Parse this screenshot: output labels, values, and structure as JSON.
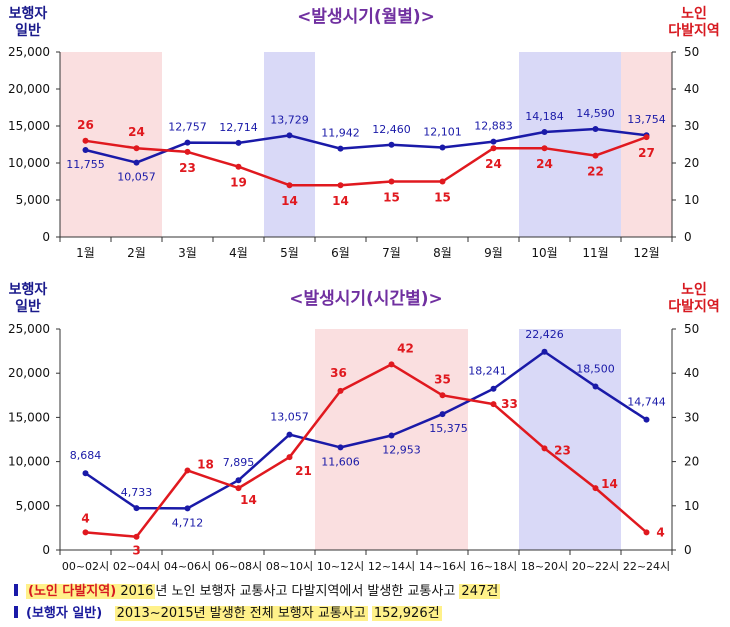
{
  "chart_data": [
    {
      "type": "line",
      "title": "<발생시기(월별)>",
      "left_axis_title": [
        "보행자",
        "일반"
      ],
      "right_axis_title": [
        "노인",
        "다발지역"
      ],
      "categories": [
        "1월",
        "2월",
        "3월",
        "4월",
        "5월",
        "6월",
        "7월",
        "8월",
        "9월",
        "10월",
        "11월",
        "12월"
      ],
      "left_ylim": [
        0,
        25000
      ],
      "left_ticks": [
        "0",
        "5,000",
        "10,000",
        "15,000",
        "20,000",
        "25,000"
      ],
      "right_ylim": [
        0,
        50
      ],
      "right_ticks": [
        "0",
        "10",
        "20",
        "30",
        "40",
        "50"
      ],
      "highlights": [
        {
          "from": 0,
          "to": 1,
          "color": "#fadfe0"
        },
        {
          "from": 4,
          "to": 4,
          "color": "#d9d9f7"
        },
        {
          "from": 9,
          "to": 10,
          "color": "#d9d9f7"
        },
        {
          "from": 11,
          "to": 11,
          "color": "#fadfe0"
        }
      ],
      "series": [
        {
          "axis": "left",
          "color": "#1a1aa8",
          "values": [
            11755,
            10057,
            12757,
            12714,
            13729,
            11942,
            12460,
            12101,
            12883,
            14184,
            14590,
            13754
          ],
          "labels": [
            "11,755",
            "10,057",
            "12,757",
            "12,714",
            "13,729",
            "11,942",
            "12,460",
            "12,101",
            "12,883",
            "14,184",
            "14,590",
            "13,754"
          ]
        },
        {
          "axis": "right",
          "color": "#e0191f",
          "values": [
            26,
            24,
            23,
            19,
            14,
            14,
            15,
            15,
            24,
            24,
            22,
            27
          ],
          "labels": [
            "26",
            "24",
            "23",
            "19",
            "14",
            "14",
            "15",
            "15",
            "24",
            "24",
            "22",
            "27"
          ]
        }
      ]
    },
    {
      "type": "line",
      "title": "<발생시기(시간별)>",
      "left_axis_title": [
        "보행자",
        "일반"
      ],
      "right_axis_title": [
        "노인",
        "다발지역"
      ],
      "categories": [
        "00~02시",
        "02~04시",
        "04~06시",
        "06~08시",
        "08~10시",
        "10~12시",
        "12~14시",
        "14~16시",
        "16~18시",
        "18~20시",
        "20~22시",
        "22~24시"
      ],
      "left_ylim": [
        0,
        25000
      ],
      "left_ticks": [
        "0",
        "5,000",
        "10,000",
        "15,000",
        "20,000",
        "25,000"
      ],
      "right_ylim": [
        0,
        50
      ],
      "right_ticks": [
        "0",
        "10",
        "20",
        "30",
        "40",
        "50"
      ],
      "highlights": [
        {
          "from": 5,
          "to": 7,
          "color": "#fadfe0"
        },
        {
          "from": 9,
          "to": 10,
          "color": "#d9d9f7"
        }
      ],
      "series": [
        {
          "axis": "left",
          "color": "#1a1aa8",
          "values": [
            8684,
            4733,
            4712,
            7895,
            13057,
            11606,
            12953,
            15375,
            18241,
            22426,
            18500,
            14744
          ],
          "labels": [
            "8,684",
            "4,733",
            "4,712",
            "7,895",
            "13,057",
            "11,606",
            "12,953",
            "15,375",
            "18,241",
            "22,426",
            "18,500",
            "14,744"
          ]
        },
        {
          "axis": "right",
          "color": "#e0191f",
          "values": [
            4,
            3,
            18,
            14,
            21,
            36,
            42,
            35,
            33,
            23,
            14,
            4
          ],
          "labels": [
            "4",
            "3",
            "18",
            "14",
            "21",
            "36",
            "42",
            "35",
            "33",
            "23",
            "14",
            "4"
          ]
        }
      ]
    }
  ],
  "notes": {
    "note1_tag": "(노인 다발지역)",
    "note1_year": "2016",
    "note1_mid": "년 노인 보행자 교통사고 다발지역에서 발생한 교통사고",
    "note1_count": "247건",
    "note2_tag": "(보행자 일반)",
    "note2_text": "2013~2015년 발생한 전체 보행자 교통사고",
    "note2_count": "152,926건"
  },
  "colors": {
    "blue_series": "#1a1aa8",
    "red_series": "#e0191f",
    "title_purple": "#7030a0"
  }
}
